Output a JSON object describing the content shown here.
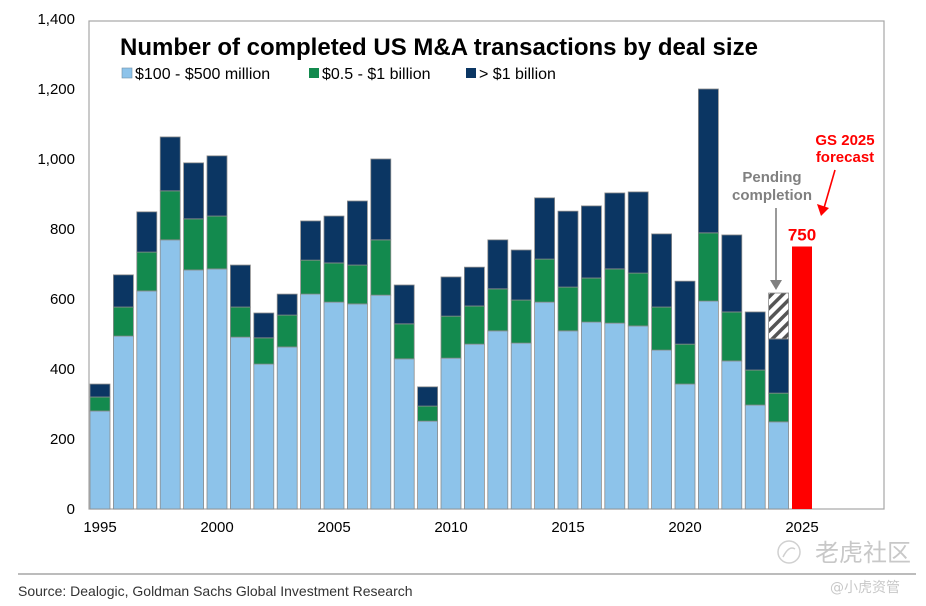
{
  "chart_data": {
    "type": "bar",
    "stacked": true,
    "title": "Number of completed US M&A transactions by deal size",
    "xlabel": "",
    "ylabel": "",
    "ylim": [
      0,
      1400
    ],
    "yticks": [
      0,
      200,
      400,
      600,
      800,
      1000,
      1200,
      1400
    ],
    "ytick_labels": [
      "0",
      "200",
      "400",
      "600",
      "800",
      "1,000",
      "1,200",
      "1,400"
    ],
    "xtick_labels": [
      "1995",
      "2000",
      "2005",
      "2010",
      "2015",
      "2020",
      "2025"
    ],
    "grid": false,
    "legend_position": "top-left",
    "categories": [
      "1995",
      "1996",
      "1997",
      "1998",
      "1999",
      "2000",
      "2001",
      "2002",
      "2003",
      "2004",
      "2005",
      "2006",
      "2007",
      "2008",
      "2009",
      "2010",
      "2011",
      "2012",
      "2013",
      "2014",
      "2015",
      "2016",
      "2017",
      "2018",
      "2019",
      "2020",
      "2021",
      "2022",
      "2023",
      "2024"
    ],
    "series": [
      {
        "name": "$100 - $500 million",
        "color": "#8DC3EA",
        "values": [
          280,
          494,
          623,
          769,
          683,
          686,
          491,
          414,
          463,
          614,
          591,
          586,
          611,
          429,
          251,
          431,
          471,
          509,
          474,
          591,
          509,
          534,
          531,
          523,
          454,
          357,
          594,
          423,
          297,
          249
        ]
      },
      {
        "name": "$0.5 - $1 billion",
        "color": "#138A4E",
        "values": [
          40,
          83,
          111,
          140,
          146,
          151,
          86,
          75,
          91,
          97,
          112,
          111,
          158,
          100,
          43,
          120,
          109,
          120,
          123,
          123,
          125,
          126,
          155,
          151,
          123,
          114,
          195,
          140,
          100,
          82
        ]
      },
      {
        "name": "> $1 billion",
        "color": "#0B3663",
        "values": [
          37,
          92,
          115,
          154,
          160,
          172,
          120,
          71,
          60,
          112,
          134,
          183,
          231,
          111,
          55,
          112,
          111,
          140,
          143,
          175,
          217,
          206,
          217,
          232,
          209,
          180,
          411,
          220,
          166,
          155
        ]
      }
    ],
    "pending": {
      "category": "2024",
      "value": 131,
      "label": "Pending\ncompletion"
    },
    "forecast": {
      "category": "2025",
      "value": 750,
      "label": "750",
      "annotation": "GS 2025\nforecast",
      "color": "#FF0000"
    }
  },
  "text": {
    "pending_line1": "Pending",
    "pending_line2": "completion",
    "forecast_line1": "GS 2025",
    "forecast_line2": "forecast",
    "forecast_value": "750",
    "source": "Source: Dealogic, Goldman Sachs Global Investment Research",
    "watermark_main": "老虎社区",
    "watermark_handle": "@小虎资管"
  }
}
